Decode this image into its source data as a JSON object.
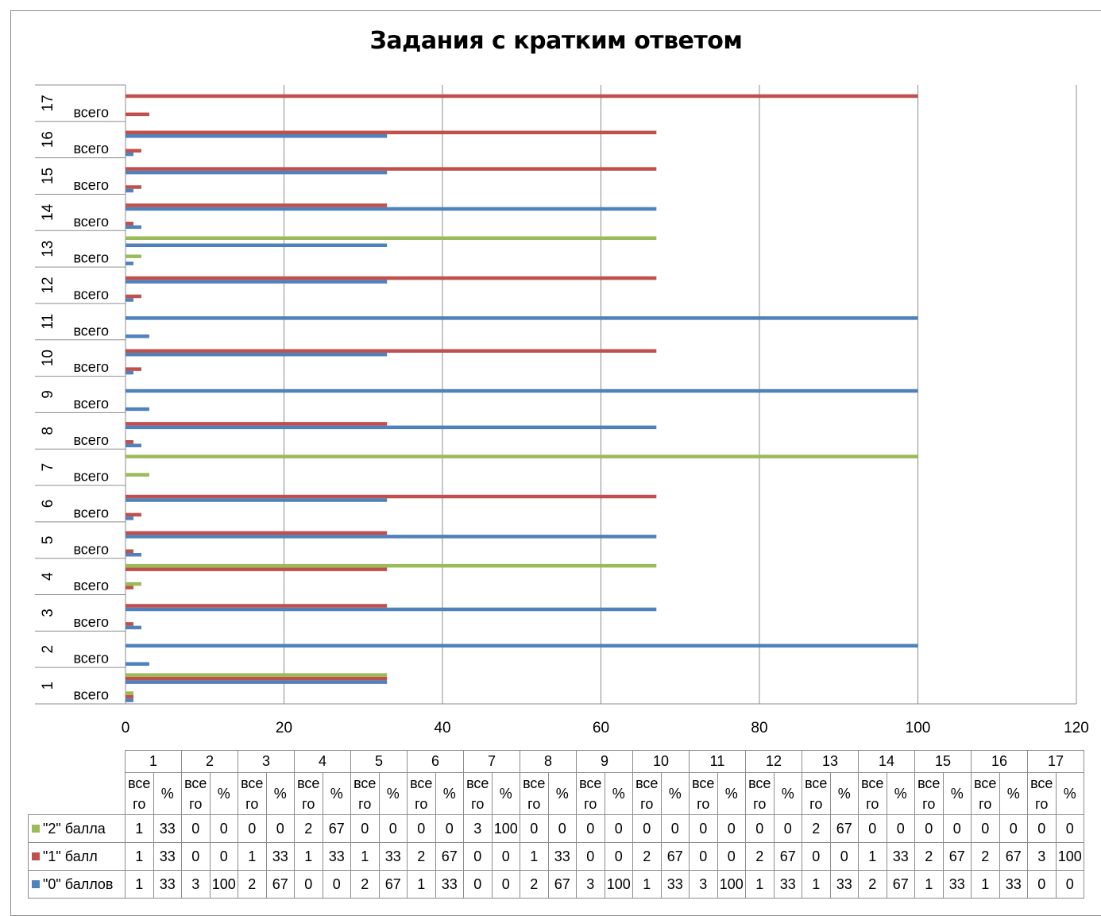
{
  "chart_data": {
    "type": "bar",
    "orientation": "horizontal",
    "title": "Задания с кратким ответом",
    "categories": [
      "1",
      "2",
      "3",
      "4",
      "5",
      "6",
      "7",
      "8",
      "9",
      "10",
      "11",
      "12",
      "13",
      "14",
      "15",
      "16",
      "17"
    ],
    "sub_categories": [
      "всего",
      "%"
    ],
    "sub_category_header": [
      "все",
      "го"
    ],
    "xlim": [
      0,
      120
    ],
    "x_ticks": [
      "0",
      "20",
      "40",
      "60",
      "80",
      "100",
      "120"
    ],
    "grid": "vertical",
    "legend": "data-table",
    "series": [
      {
        "name": "\"0\" баллов",
        "color": "#4F81BD",
        "total": [
          1,
          3,
          2,
          0,
          2,
          1,
          0,
          2,
          3,
          1,
          3,
          1,
          1,
          2,
          1,
          1,
          0
        ],
        "percent": [
          33,
          100,
          67,
          0,
          67,
          33,
          0,
          67,
          100,
          33,
          100,
          33,
          33,
          67,
          33,
          33,
          0
        ]
      },
      {
        "name": "\"1\" балл",
        "color": "#C0504D",
        "total": [
          1,
          0,
          1,
          1,
          1,
          2,
          0,
          1,
          0,
          2,
          0,
          2,
          0,
          1,
          2,
          2,
          3
        ],
        "percent": [
          33,
          0,
          33,
          33,
          33,
          67,
          0,
          33,
          0,
          67,
          0,
          67,
          0,
          33,
          67,
          67,
          100
        ]
      },
      {
        "name": "\"2\" балла",
        "color": "#9BBB59",
        "total": [
          1,
          0,
          0,
          2,
          0,
          0,
          3,
          0,
          0,
          0,
          0,
          0,
          2,
          0,
          0,
          0,
          0
        ],
        "percent": [
          33,
          0,
          0,
          67,
          0,
          0,
          100,
          0,
          0,
          0,
          0,
          0,
          67,
          0,
          0,
          0,
          0
        ]
      }
    ]
  }
}
